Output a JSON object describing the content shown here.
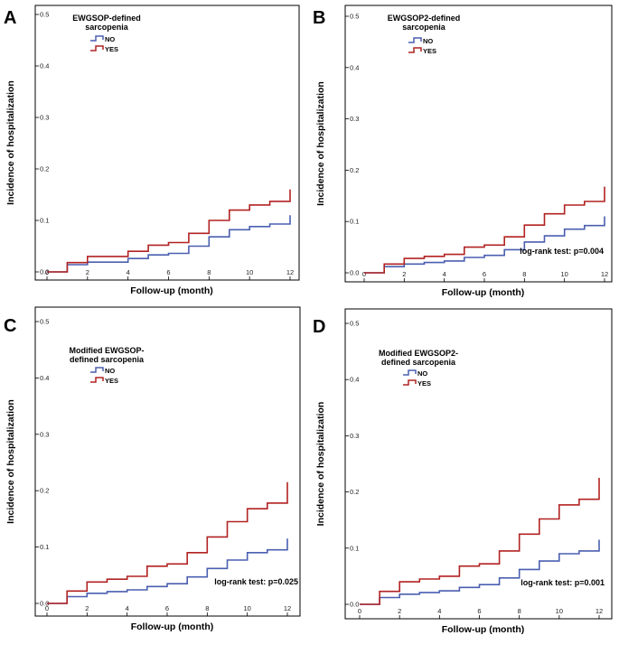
{
  "chart_data": [
    {
      "type": "line",
      "panel_label": "A",
      "title": "EWGSOP-defined sarcopenia",
      "title_lines": [
        "EWGSOP-defined",
        "sarcopenia"
      ],
      "xlabel": "Follow-up (month)",
      "ylabel": "Incidence of hospitalization",
      "xlim": [
        0,
        12
      ],
      "ylim": [
        0,
        0.5
      ],
      "xticks": [
        "0",
        "2",
        "4",
        "6",
        "8",
        "10",
        "12"
      ],
      "yticks": [
        "0.0",
        "0.1",
        "0.2",
        "0.3",
        "0.4",
        "0.5"
      ],
      "log_rank": "",
      "series": [
        {
          "name": "NO",
          "color": "#4a5fb0",
          "x": [
            0,
            1,
            1,
            2,
            2,
            4,
            4,
            5,
            5,
            6,
            6,
            7,
            7,
            8,
            8,
            9,
            9,
            10,
            10,
            11,
            11,
            12,
            12
          ],
          "y": [
            0,
            0,
            0.014,
            0.014,
            0.019,
            0.019,
            0.026,
            0.026,
            0.033,
            0.033,
            0.036,
            0.036,
            0.05,
            0.05,
            0.068,
            0.068,
            0.082,
            0.082,
            0.088,
            0.088,
            0.093,
            0.093,
            0.11
          ]
        },
        {
          "name": "YES",
          "color": "#b22222",
          "x": [
            0,
            1,
            1,
            2,
            2,
            4,
            4,
            5,
            5,
            6,
            6,
            7,
            7,
            8,
            8,
            9,
            9,
            10,
            10,
            11,
            11,
            12,
            12
          ],
          "y": [
            0,
            0,
            0.018,
            0.018,
            0.03,
            0.03,
            0.04,
            0.04,
            0.052,
            0.052,
            0.057,
            0.057,
            0.075,
            0.075,
            0.1,
            0.1,
            0.12,
            0.12,
            0.13,
            0.13,
            0.137,
            0.137,
            0.16
          ]
        }
      ]
    },
    {
      "type": "line",
      "panel_label": "B",
      "title": "EWGSOP2-defined sarcopenia",
      "title_lines": [
        "EWGSOP2-defined",
        "sarcopenia"
      ],
      "xlabel": "Follow-up (month)",
      "ylabel": "Incidence of hospitalization",
      "xlim": [
        0,
        12
      ],
      "ylim": [
        0,
        0.5
      ],
      "xticks": [
        "0",
        "2",
        "4",
        "6",
        "8",
        "10",
        "12"
      ],
      "yticks": [
        "0.0",
        "0.1",
        "0.2",
        "0.3",
        "0.4",
        "0.5"
      ],
      "log_rank": "log-rank test: p=0.004",
      "series": [
        {
          "name": "NO",
          "color": "#4a5fb0",
          "x": [
            0,
            1,
            1,
            2,
            2,
            3,
            3,
            4,
            4,
            5,
            5,
            6,
            6,
            7,
            7,
            8,
            8,
            9,
            9,
            10,
            10,
            11,
            11,
            12,
            12
          ],
          "y": [
            0,
            0,
            0.012,
            0.012,
            0.017,
            0.017,
            0.02,
            0.02,
            0.023,
            0.023,
            0.03,
            0.03,
            0.034,
            0.034,
            0.045,
            0.045,
            0.06,
            0.06,
            0.072,
            0.072,
            0.085,
            0.085,
            0.092,
            0.092,
            0.11
          ]
        },
        {
          "name": "YES",
          "color": "#b22222",
          "x": [
            0,
            1,
            1,
            2,
            2,
            3,
            3,
            4,
            4,
            5,
            5,
            6,
            6,
            7,
            7,
            8,
            8,
            9,
            9,
            10,
            10,
            11,
            11,
            12,
            12
          ],
          "y": [
            0,
            0,
            0.017,
            0.017,
            0.028,
            0.028,
            0.032,
            0.032,
            0.036,
            0.036,
            0.05,
            0.05,
            0.054,
            0.054,
            0.07,
            0.07,
            0.093,
            0.093,
            0.115,
            0.115,
            0.132,
            0.132,
            0.139,
            0.139,
            0.168
          ]
        }
      ]
    },
    {
      "type": "line",
      "panel_label": "C",
      "title": "Modified EWGSOP-defined sarcopenia",
      "title_lines": [
        "Modified EWGSOP-",
        "defined sarcopenia"
      ],
      "xlabel": "Follow-up (month)",
      "ylabel": "Incidence of hospitalization",
      "xlim": [
        0,
        12
      ],
      "ylim": [
        0,
        0.5
      ],
      "xticks": [
        "0",
        "2",
        "4",
        "6",
        "8",
        "10",
        "12"
      ],
      "yticks": [
        "0.0",
        "0.1",
        "0.2",
        "0.3",
        "0.4",
        "0.5"
      ],
      "log_rank": "log-rank test: p=0.025",
      "series": [
        {
          "name": "NO",
          "color": "#4a5fb0",
          "x": [
            0,
            1,
            1,
            2,
            2,
            3,
            3,
            4,
            4,
            5,
            5,
            6,
            6,
            7,
            7,
            8,
            8,
            9,
            9,
            10,
            10,
            11,
            11,
            12,
            12
          ],
          "y": [
            0,
            0,
            0.012,
            0.012,
            0.018,
            0.018,
            0.021,
            0.021,
            0.024,
            0.024,
            0.03,
            0.03,
            0.035,
            0.035,
            0.047,
            0.047,
            0.062,
            0.062,
            0.077,
            0.077,
            0.09,
            0.09,
            0.095,
            0.095,
            0.115
          ]
        },
        {
          "name": "YES",
          "color": "#b22222",
          "x": [
            0,
            1,
            1,
            2,
            2,
            3,
            3,
            4,
            4,
            5,
            5,
            6,
            6,
            7,
            7,
            8,
            8,
            9,
            9,
            10,
            10,
            11,
            11,
            12,
            12
          ],
          "y": [
            0,
            0,
            0.022,
            0.022,
            0.038,
            0.038,
            0.043,
            0.043,
            0.048,
            0.048,
            0.066,
            0.066,
            0.07,
            0.07,
            0.09,
            0.09,
            0.118,
            0.118,
            0.145,
            0.145,
            0.168,
            0.168,
            0.178,
            0.178,
            0.215
          ]
        }
      ]
    },
    {
      "type": "line",
      "panel_label": "D",
      "title": "Modified EWGSOP2-defined sarcopenia",
      "title_lines": [
        "Modified EWGSOP2-",
        "defined sarcopenia"
      ],
      "xlabel": "Follow-up (month)",
      "ylabel": "Incidence of hospitalization",
      "xlim": [
        0,
        12
      ],
      "ylim": [
        0,
        0.5
      ],
      "xticks": [
        "0",
        "2",
        "4",
        "6",
        "8",
        "10",
        "12"
      ],
      "yticks": [
        "0.0",
        "0.1",
        "0.2",
        "0.3",
        "0.4",
        "0.5"
      ],
      "log_rank": "log-rank test: p=0.001",
      "series": [
        {
          "name": "NO",
          "color": "#4a5fb0",
          "x": [
            0,
            1,
            1,
            2,
            2,
            3,
            3,
            4,
            4,
            5,
            5,
            6,
            6,
            7,
            7,
            8,
            8,
            9,
            9,
            10,
            10,
            11,
            11,
            12,
            12
          ],
          "y": [
            0,
            0,
            0.012,
            0.012,
            0.018,
            0.018,
            0.021,
            0.021,
            0.024,
            0.024,
            0.03,
            0.03,
            0.035,
            0.035,
            0.047,
            0.047,
            0.062,
            0.062,
            0.077,
            0.077,
            0.09,
            0.09,
            0.095,
            0.095,
            0.115
          ]
        },
        {
          "name": "YES",
          "color": "#b22222",
          "x": [
            0,
            1,
            1,
            2,
            2,
            3,
            3,
            4,
            4,
            5,
            5,
            6,
            6,
            7,
            7,
            8,
            8,
            9,
            9,
            10,
            10,
            11,
            11,
            12,
            12
          ],
          "y": [
            0,
            0,
            0.023,
            0.023,
            0.04,
            0.04,
            0.045,
            0.045,
            0.05,
            0.05,
            0.068,
            0.068,
            0.072,
            0.072,
            0.095,
            0.095,
            0.125,
            0.125,
            0.152,
            0.152,
            0.177,
            0.177,
            0.187,
            0.187,
            0.225
          ]
        }
      ]
    }
  ]
}
